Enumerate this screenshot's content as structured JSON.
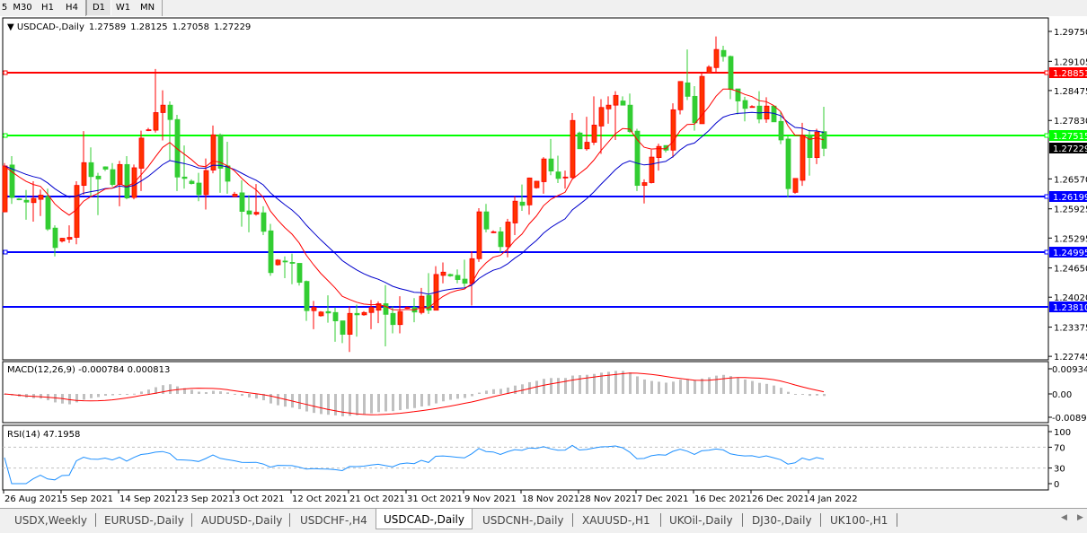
{
  "toolbar": {
    "timeframes": [
      "5",
      "M30",
      "H1",
      "H4",
      "D1",
      "W1",
      "MN"
    ],
    "active": "D1"
  },
  "header": {
    "symbol": "USDCAD-,Daily",
    "open": "1.27589",
    "high": "1.28125",
    "low": "1.27058",
    "close": "1.27229"
  },
  "indicators": {
    "macd_label": "MACD(12,26,9) -0.000784 0.000813",
    "macd_axis": [
      "0.009345",
      "0.00",
      "-0.008902"
    ],
    "rsi_label": "RSI(14) 47.1958",
    "rsi_axis": [
      "100",
      "70",
      "30",
      "0"
    ]
  },
  "tabs": [
    {
      "label": "USDX,Weekly"
    },
    {
      "label": "EURUSD-,Daily"
    },
    {
      "label": "AUDUSD-,Daily"
    },
    {
      "label": "USDCHF-,H4"
    },
    {
      "label": "USDCAD-,Daily",
      "active": true
    },
    {
      "label": "USDCNH-,Daily"
    },
    {
      "label": "XAUUSD-,H1"
    },
    {
      "label": "UKOil-,Daily"
    },
    {
      "label": "DJ30-,Daily"
    },
    {
      "label": "UK100-,H1"
    }
  ],
  "colors": {
    "up_candle": "#FF3300",
    "down_candle": "#32CD32",
    "ma_fast": "#FF0000",
    "ma_slow": "#0000CC",
    "macd_hist": "#C0C0C0",
    "macd_signal": "#FF0000",
    "rsi": "#1E90FF"
  },
  "chart_data": {
    "type": "candlestick",
    "title": "USDCAD-,Daily",
    "ylim": [
      1.2267,
      1.3004
    ],
    "y_ticks": [
      "1.29750",
      "1.29105",
      "1.28475",
      "1.27830",
      "1.26570",
      "1.25925",
      "1.25295",
      "1.24650",
      "1.24020",
      "1.23375",
      "1.22745"
    ],
    "x_ticks": [
      "26 Aug 2021",
      "5 Sep 2021",
      "14 Sep 2021",
      "23 Sep 2021",
      "3 Oct 2021",
      "12 Oct 2021",
      "21 Oct 2021",
      "31 Oct 2021",
      "9 Nov 2021",
      "18 Nov 2021",
      "28 Nov 2021",
      "7 Dec 2021",
      "16 Dec 2021",
      "26 Dec 2021",
      "4 Jan 2022"
    ],
    "hlines": [
      {
        "price": "1.28851",
        "color": "#FF0000",
        "marker": true
      },
      {
        "price": "1.27515",
        "color": "#00FF00",
        "marker": true,
        "text_color": "#FFFFFF"
      },
      {
        "price": "1.26199",
        "color": "#0000FF",
        "marker": true
      },
      {
        "price": "1.24995",
        "color": "#0000FF",
        "marker": true
      },
      {
        "price": "1.23810",
        "color": "#0000FF",
        "marker": false
      }
    ],
    "current_price": "1.27229",
    "ohlc": [
      [
        1.2586,
        1.2691,
        1.2585,
        1.2685
      ],
      [
        1.2687,
        1.2706,
        1.2603,
        1.2617
      ],
      [
        1.2614,
        1.2616,
        1.2611,
        1.2612
      ],
      [
        1.2611,
        1.2633,
        1.2569,
        1.2607
      ],
      [
        1.2606,
        1.2652,
        1.2565,
        1.2615
      ],
      [
        1.2613,
        1.2634,
        1.2577,
        1.2622
      ],
      [
        1.2619,
        1.2636,
        1.2545,
        1.2549
      ],
      [
        1.2551,
        1.2557,
        1.249,
        1.2509
      ],
      [
        1.2523,
        1.253,
        1.252,
        1.2529
      ],
      [
        1.2527,
        1.2557,
        1.2519,
        1.2531
      ],
      [
        1.2531,
        1.2652,
        1.2516,
        1.2643
      ],
      [
        1.2643,
        1.276,
        1.2623,
        1.2692
      ],
      [
        1.2692,
        1.2725,
        1.2619,
        1.2662
      ],
      [
        1.2663,
        1.267,
        1.2579,
        1.2657
      ],
      [
        1.2683,
        1.2684,
        1.2674,
        1.2678
      ],
      [
        1.2677,
        1.2691,
        1.264,
        1.2645
      ],
      [
        1.2645,
        1.2696,
        1.2598,
        1.2688
      ],
      [
        1.2688,
        1.2706,
        1.2613,
        1.2616
      ],
      [
        1.2617,
        1.2688,
        1.2613,
        1.2681
      ],
      [
        1.268,
        1.2761,
        1.2631,
        1.2745
      ],
      [
        1.2761,
        1.2767,
        1.276,
        1.2763
      ],
      [
        1.2762,
        1.2894,
        1.2757,
        1.28
      ],
      [
        1.28,
        1.2848,
        1.274,
        1.2816
      ],
      [
        1.2816,
        1.2824,
        1.2696,
        1.2785
      ],
      [
        1.2785,
        1.2795,
        1.2631,
        1.2661
      ],
      [
        1.2661,
        1.2729,
        1.2636,
        1.2658
      ],
      [
        1.2652,
        1.2656,
        1.2645,
        1.2647
      ],
      [
        1.2648,
        1.267,
        1.2609,
        1.2623
      ],
      [
        1.2623,
        1.2701,
        1.2591,
        1.2675
      ],
      [
        1.2676,
        1.2772,
        1.2669,
        1.2752
      ],
      [
        1.2752,
        1.2755,
        1.2627,
        1.268
      ],
      [
        1.2685,
        1.2737,
        1.2625,
        1.2652
      ],
      [
        1.2619,
        1.2629,
        1.2618,
        1.2624
      ],
      [
        1.2627,
        1.2654,
        1.2554,
        1.2587
      ],
      [
        1.2588,
        1.2622,
        1.2542,
        1.2581
      ],
      [
        1.2581,
        1.2646,
        1.2578,
        1.2585
      ],
      [
        1.2584,
        1.2598,
        1.2536,
        1.2544
      ],
      [
        1.2545,
        1.256,
        1.2448,
        1.2455
      ],
      [
        1.2472,
        1.2484,
        1.247,
        1.2482
      ],
      [
        1.248,
        1.249,
        1.2443,
        1.2478
      ],
      [
        1.2477,
        1.2496,
        1.243,
        1.2475
      ],
      [
        1.2475,
        1.2475,
        1.2427,
        1.2434
      ],
      [
        1.2436,
        1.2438,
        1.2351,
        1.2373
      ],
      [
        1.2373,
        1.2394,
        1.2333,
        1.238
      ],
      [
        1.2362,
        1.2372,
        1.236,
        1.237
      ],
      [
        1.2371,
        1.2406,
        1.2347,
        1.2368
      ],
      [
        1.2369,
        1.238,
        1.2306,
        1.2351
      ],
      [
        1.2351,
        1.2351,
        1.2303,
        1.2322
      ],
      [
        1.2322,
        1.2382,
        1.2284,
        1.2367
      ],
      [
        1.2367,
        1.2386,
        1.2317,
        1.2364
      ],
      [
        1.2364,
        1.2372,
        1.2362,
        1.2369
      ],
      [
        1.2369,
        1.2396,
        1.2333,
        1.238
      ],
      [
        1.2374,
        1.2393,
        1.2346,
        1.2388
      ],
      [
        1.2388,
        1.2428,
        1.2296,
        1.2365
      ],
      [
        1.2367,
        1.2382,
        1.2324,
        1.2343
      ],
      [
        1.2343,
        1.2404,
        1.2324,
        1.2371
      ],
      [
        1.2378,
        1.2382,
        1.2377,
        1.238
      ],
      [
        1.238,
        1.24,
        1.2348,
        1.237
      ],
      [
        1.2369,
        1.2422,
        1.2365,
        1.2404
      ],
      [
        1.2406,
        1.2454,
        1.2366,
        1.2374
      ],
      [
        1.2374,
        1.2469,
        1.2374,
        1.2451
      ],
      [
        1.2449,
        1.2477,
        1.2432,
        1.2456
      ],
      [
        1.2451,
        1.2453,
        1.2446,
        1.2448
      ],
      [
        1.2449,
        1.2462,
        1.2432,
        1.244
      ],
      [
        1.2441,
        1.2483,
        1.2424,
        1.2432
      ],
      [
        1.2432,
        1.2501,
        1.2384,
        1.2485
      ],
      [
        1.2485,
        1.2594,
        1.2478,
        1.2586
      ],
      [
        1.2586,
        1.2603,
        1.2542,
        1.2549
      ],
      [
        1.2541,
        1.2546,
        1.254,
        1.2543
      ],
      [
        1.2543,
        1.2553,
        1.2498,
        1.2511
      ],
      [
        1.2511,
        1.2571,
        1.2488,
        1.2564
      ],
      [
        1.2562,
        1.262,
        1.2536,
        1.2609
      ],
      [
        1.2607,
        1.2645,
        1.2588,
        1.26
      ],
      [
        1.2601,
        1.266,
        1.258,
        1.2659
      ],
      [
        1.2638,
        1.2653,
        1.2636,
        1.2652
      ],
      [
        1.2651,
        1.2704,
        1.2625,
        1.27
      ],
      [
        1.27,
        1.2743,
        1.2665,
        1.2674
      ],
      [
        1.2672,
        1.2707,
        1.2648,
        1.2658
      ],
      [
        1.2659,
        1.2675,
        1.2636,
        1.2661
      ],
      [
        1.266,
        1.2799,
        1.2658,
        1.2783
      ],
      [
        1.2756,
        1.2759,
        1.2722,
        1.2722
      ],
      [
        1.2722,
        1.2791,
        1.2718,
        1.2736
      ],
      [
        1.2736,
        1.2835,
        1.273,
        1.2773
      ],
      [
        1.2771,
        1.2829,
        1.2711,
        1.2811
      ],
      [
        1.2808,
        1.2835,
        1.2776,
        1.2816
      ],
      [
        1.2816,
        1.2846,
        1.2741,
        1.2837
      ],
      [
        1.2825,
        1.2835,
        1.2816,
        1.2816
      ],
      [
        1.2816,
        1.2841,
        1.2756,
        1.2759
      ],
      [
        1.276,
        1.2765,
        1.2631,
        1.2643
      ],
      [
        1.2643,
        1.2656,
        1.2604,
        1.2649
      ],
      [
        1.2649,
        1.272,
        1.2647,
        1.2704
      ],
      [
        1.2703,
        1.2733,
        1.2675,
        1.2727
      ],
      [
        1.2729,
        1.2729,
        1.2714,
        1.2719
      ],
      [
        1.2719,
        1.282,
        1.2703,
        1.2806
      ],
      [
        1.2806,
        1.2867,
        1.2796,
        1.2867
      ],
      [
        1.2864,
        1.2936,
        1.2827,
        1.2835
      ],
      [
        1.2835,
        1.2857,
        1.2761,
        1.2778
      ],
      [
        1.2776,
        1.2885,
        1.2776,
        1.2878
      ],
      [
        1.2885,
        1.2902,
        1.2885,
        1.2898
      ],
      [
        1.2897,
        1.2964,
        1.2885,
        1.2936
      ],
      [
        1.2934,
        1.2944,
        1.291,
        1.2921
      ],
      [
        1.2921,
        1.2923,
        1.2829,
        1.285
      ],
      [
        1.2851,
        1.2851,
        1.2796,
        1.2825
      ],
      [
        1.2826,
        1.2834,
        1.2781,
        1.2809
      ],
      [
        1.2811,
        1.2816,
        1.2811,
        1.2813
      ],
      [
        1.2814,
        1.2846,
        1.2777,
        1.2786
      ],
      [
        1.2786,
        1.2833,
        1.2778,
        1.2814
      ],
      [
        1.2814,
        1.2815,
        1.278,
        1.278
      ],
      [
        1.2781,
        1.2801,
        1.2732,
        1.2741
      ],
      [
        1.2743,
        1.2749,
        1.2617,
        1.2636
      ],
      [
        1.2628,
        1.2658,
        1.2625,
        1.2658
      ],
      [
        1.2654,
        1.2778,
        1.2642,
        1.2751
      ],
      [
        1.2751,
        1.2763,
        1.2664,
        1.2703
      ],
      [
        1.2703,
        1.2765,
        1.2689,
        1.2758
      ],
      [
        1.27589,
        1.28125,
        1.27058,
        1.27229
      ]
    ]
  }
}
